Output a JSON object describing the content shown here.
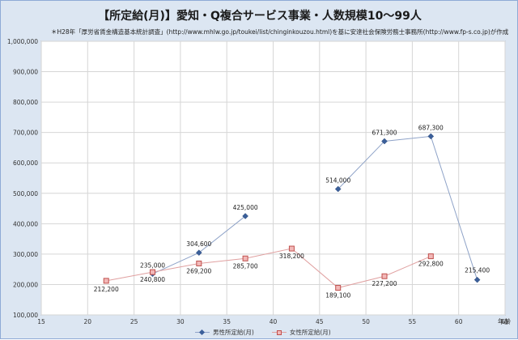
{
  "chart_data": {
    "type": "line",
    "title": "【所定給(月)】愛知・Q複合サービス事業・人数規模10～99人",
    "subtitle": "＊H28年「厚労省賃金構造基本統計調査」(http://www.mhlw.go.jp/toukei/list/chinginkouzou.html)を基に安達社会保険労務士事務所(http://www.fp-s.co.jp)が作成",
    "xlabel": "年齢",
    "ylabel": "",
    "xlim": [
      15,
      65
    ],
    "ylim": [
      100000,
      1000000
    ],
    "x_ticks": [
      15,
      20,
      25,
      30,
      35,
      40,
      45,
      50,
      55,
      60,
      65
    ],
    "y_ticks": [
      100000,
      200000,
      300000,
      400000,
      500000,
      600000,
      700000,
      800000,
      900000,
      1000000
    ],
    "y_tick_labels": [
      "100,000",
      "200,000",
      "300,000",
      "400,000",
      "500,000",
      "600,000",
      "700,000",
      "800,000",
      "900,000",
      "1,000,000"
    ],
    "grid": true,
    "legend_position": "bottom",
    "series": [
      {
        "name": "男性所定給(月)",
        "color": "#4f6fa8",
        "marker": "diamond",
        "segments": [
          [
            {
              "x": 27,
              "y": 235000,
              "label": "235,000"
            },
            {
              "x": 32,
              "y": 304600,
              "label": "304,600"
            },
            {
              "x": 37,
              "y": 425000,
              "label": "425,000"
            }
          ],
          [
            {
              "x": 47,
              "y": 514000,
              "label": "514,000"
            },
            {
              "x": 52,
              "y": 671300,
              "label": "671,300"
            },
            {
              "x": 57,
              "y": 687300,
              "label": "687,300"
            },
            {
              "x": 62,
              "y": 215400,
              "label": "215,400"
            }
          ]
        ]
      },
      {
        "name": "女性所定給(月)",
        "color": "#c0504d",
        "marker": "square",
        "segments": [
          [
            {
              "x": 22,
              "y": 212200,
              "label": "212,200"
            },
            {
              "x": 27,
              "y": 240800,
              "label": "240,800"
            },
            {
              "x": 32,
              "y": 269200,
              "label": "269,200"
            },
            {
              "x": 37,
              "y": 285700,
              "label": "285,700"
            },
            {
              "x": 42,
              "y": 318200,
              "label": "318,200"
            },
            {
              "x": 47,
              "y": 189100,
              "label": "189,100"
            },
            {
              "x": 52,
              "y": 227200,
              "label": "227,200"
            },
            {
              "x": 57,
              "y": 292800,
              "label": "292,800"
            }
          ]
        ]
      }
    ]
  }
}
